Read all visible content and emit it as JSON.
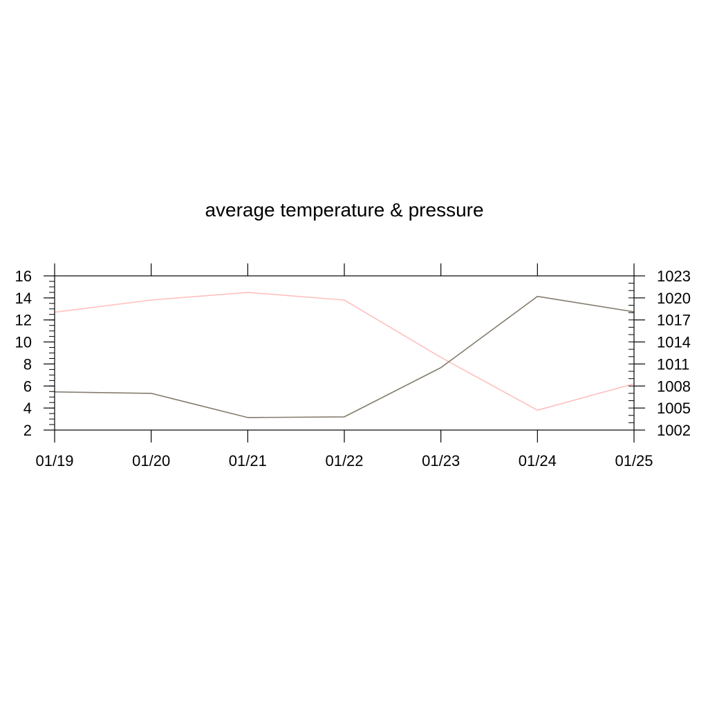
{
  "chart_data": {
    "type": "line",
    "title": "average temperature & pressure",
    "xlabel": "",
    "ylabel": "",
    "y2label": "",
    "categories": [
      "01/19",
      "01/20",
      "01/21",
      "01/22",
      "01/23",
      "01/24",
      "01/25"
    ],
    "left_axis": {
      "ylim": [
        2,
        16
      ],
      "ticks": [
        "2",
        "4",
        "6",
        "8",
        "10",
        "12",
        "14",
        "16"
      ]
    },
    "right_axis": {
      "ylim": [
        1002,
        1023
      ],
      "ticks": [
        "1002",
        "1005",
        "1008",
        "1011",
        "1014",
        "1017",
        "1020",
        "1023"
      ]
    },
    "series": [
      {
        "axis": "left",
        "color": "#ffbfbf",
        "values": [
          12.7,
          13.8,
          14.5,
          13.8,
          8.6,
          3.8,
          6.2
        ]
      },
      {
        "axis": "right",
        "color": "#857c6e",
        "values": [
          1007.2,
          1007.0,
          1003.7,
          1003.8,
          1010.5,
          1020.2,
          1018.1
        ]
      }
    ],
    "grid": false,
    "legend": "none"
  }
}
